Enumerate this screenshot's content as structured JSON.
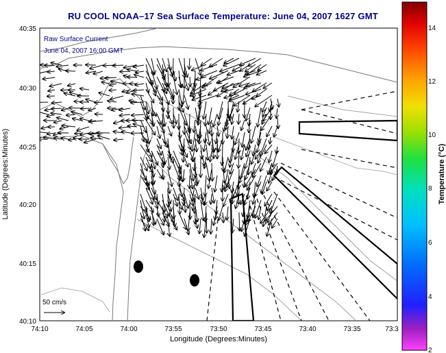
{
  "title": "RU COOL   NOAA–17  Sea Surface Temperature:  June 04, 2007 1627 GMT",
  "overlay": {
    "line1": "Raw Surface Current",
    "line2": "June 04, 2007 16:00 GMT"
  },
  "axes": {
    "xlabel": "Longitude (Degrees:Minutes)",
    "ylabel": "Latitude (Degrees:Minutes)",
    "xticks": [
      "74:10",
      "74:05",
      "74:00",
      "73:55",
      "73:50",
      "73:45",
      "73:40",
      "73:35",
      "73:3"
    ],
    "yticks": [
      "40:35",
      "40:30",
      "40:25",
      "40:20",
      "40:15",
      "40:10"
    ]
  },
  "scale_label": "50 cm/s",
  "colorbar": {
    "label": "Temperature (°C)",
    "ticks": [
      "14",
      "12",
      "10",
      "8",
      "6",
      "4",
      "2"
    ],
    "min": 2,
    "max": 15
  },
  "colors": {
    "title": "#00008b",
    "overlay": "#00008b"
  }
}
